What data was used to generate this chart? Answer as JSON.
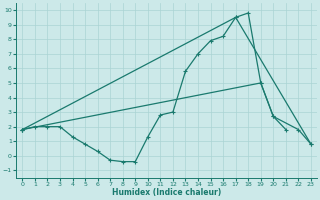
{
  "xlabel": "Humidex (Indice chaleur)",
  "background_color": "#cce9e9",
  "grid_color": "#aad4d4",
  "line_color": "#1a7a6e",
  "xlim": [
    -0.5,
    23.5
  ],
  "ylim": [
    -1.5,
    10.5
  ],
  "xticks": [
    0,
    1,
    2,
    3,
    4,
    5,
    6,
    7,
    8,
    9,
    10,
    11,
    12,
    13,
    14,
    15,
    16,
    17,
    18,
    19,
    20,
    21,
    22,
    23
  ],
  "yticks": [
    -1,
    0,
    1,
    2,
    3,
    4,
    5,
    6,
    7,
    8,
    9,
    10
  ],
  "line1_x": [
    0,
    1,
    2,
    3,
    4,
    5,
    6,
    7,
    8,
    9,
    10,
    11,
    12,
    13,
    14,
    15,
    16,
    17,
    18,
    19,
    20,
    21
  ],
  "line1_y": [
    1.8,
    2.0,
    2.0,
    2.0,
    1.3,
    0.8,
    0.3,
    -0.3,
    -0.4,
    -0.4,
    1.3,
    2.8,
    3.0,
    5.8,
    7.0,
    7.9,
    8.2,
    9.5,
    9.8,
    5.0,
    2.7,
    1.8
  ],
  "line2_x": [
    0,
    17,
    23
  ],
  "line2_y": [
    1.8,
    9.5,
    0.8
  ],
  "line3_x": [
    0,
    19,
    20,
    22,
    23
  ],
  "line3_y": [
    1.8,
    5.0,
    2.7,
    1.8,
    0.8
  ]
}
